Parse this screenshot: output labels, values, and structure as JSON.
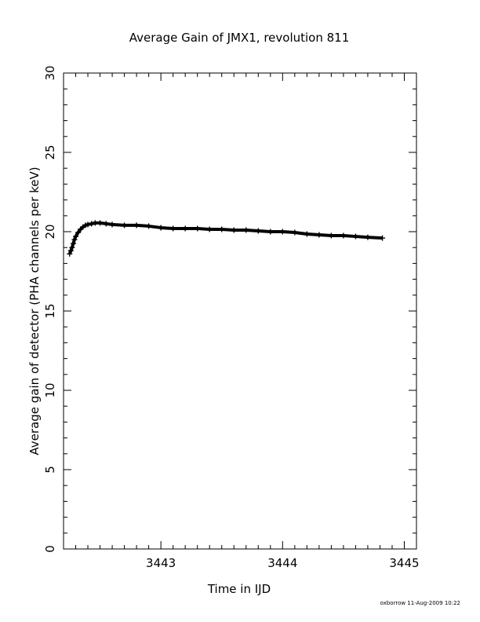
{
  "chart_data": {
    "type": "scatter",
    "title": "Average Gain of JMX1, revolution 811",
    "xlabel": "Time in IJD",
    "ylabel": "Average gain of detector (PHA channels per keV)",
    "xlim": [
      3442.2,
      3445.1
    ],
    "ylim": [
      0,
      30
    ],
    "x_major_ticks": [
      3443,
      3444,
      3445
    ],
    "x_tick_labels": [
      "3443",
      "3444",
      "3445"
    ],
    "y_major_ticks": [
      0,
      5,
      10,
      15,
      20,
      25,
      30
    ],
    "y_tick_labels": [
      "0",
      "5",
      "10",
      "15",
      "20",
      "25",
      "30"
    ],
    "marker": "plus",
    "grid": false,
    "series": [
      {
        "x": [
          3442.25,
          3442.26,
          3442.27,
          3442.28,
          3442.29,
          3442.3,
          3442.32,
          3442.34,
          3442.36,
          3442.38,
          3442.4,
          3442.43,
          3442.46,
          3442.5,
          3442.55,
          3442.6,
          3442.7,
          3442.8,
          3442.9,
          3443.0,
          3443.1,
          3443.2,
          3443.3,
          3443.4,
          3443.5,
          3443.6,
          3443.7,
          3443.8,
          3443.9,
          3444.0,
          3444.1,
          3444.2,
          3444.3,
          3444.4,
          3444.5,
          3444.6,
          3444.7,
          3444.82
        ],
        "y": [
          18.6,
          18.8,
          19.0,
          19.25,
          19.5,
          19.7,
          19.95,
          20.15,
          20.3,
          20.4,
          20.45,
          20.5,
          20.55,
          20.55,
          20.5,
          20.45,
          20.4,
          20.4,
          20.35,
          20.25,
          20.2,
          20.2,
          20.2,
          20.15,
          20.15,
          20.1,
          20.1,
          20.05,
          20.0,
          20.0,
          19.95,
          19.85,
          19.8,
          19.75,
          19.75,
          19.7,
          19.65,
          19.6
        ]
      }
    ]
  },
  "footer": "oxborrow 11-Aug-2009 10:22"
}
